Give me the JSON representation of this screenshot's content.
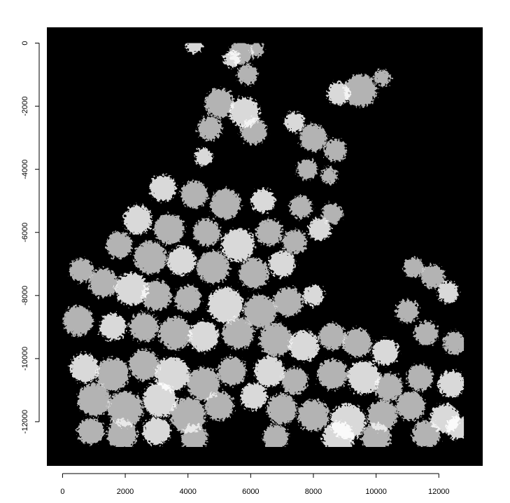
{
  "chart_data": {
    "type": "heatmap",
    "title": "",
    "xlabel": "",
    "ylabel": "",
    "xlim": [
      -500,
      13400
    ],
    "ylim": [
      -13400,
      500
    ],
    "x_ticks": [
      0,
      2000,
      4000,
      6000,
      8000,
      10000,
      12000
    ],
    "x_tick_labels": [
      "0",
      "2000",
      "4000",
      "6000",
      "8000",
      "10000",
      "12000"
    ],
    "y_ticks": [
      0,
      -2000,
      -4000,
      -6000,
      -8000,
      -10000,
      -12000
    ],
    "y_tick_labels": [
      "0",
      "-2000",
      "-4000",
      "-6000",
      "-8000",
      "-10000",
      "-12000"
    ],
    "colors": {
      "background": "#000000",
      "foreground": "#ffffff"
    },
    "grid": false,
    "legend": "none",
    "raster_extent": {
      "x": [
        0,
        12800
      ],
      "y": [
        -12800,
        0
      ]
    },
    "white_regions": [
      [
        4200,
        -60,
        260
      ],
      [
        5700,
        -300,
        380
      ],
      [
        6200,
        -200,
        220
      ],
      [
        5400,
        -500,
        260
      ],
      [
        5900,
        -1000,
        320
      ],
      [
        9500,
        -1500,
        520
      ],
      [
        8800,
        -1600,
        360
      ],
      [
        10200,
        -1100,
        260
      ],
      [
        5000,
        -1900,
        460
      ],
      [
        5800,
        -2200,
        480
      ],
      [
        4700,
        -2700,
        380
      ],
      [
        6100,
        -2800,
        420
      ],
      [
        7400,
        -2500,
        320
      ],
      [
        8000,
        -3000,
        430
      ],
      [
        8700,
        -3400,
        360
      ],
      [
        4500,
        -3600,
        280
      ],
      [
        7800,
        -4000,
        320
      ],
      [
        8500,
        -4200,
        260
      ],
      [
        3200,
        -4600,
        420
      ],
      [
        4200,
        -4800,
        430
      ],
      [
        5200,
        -5100,
        480
      ],
      [
        6400,
        -5000,
        380
      ],
      [
        7600,
        -5200,
        360
      ],
      [
        8600,
        -5400,
        330
      ],
      [
        2400,
        -5600,
        450
      ],
      [
        3400,
        -5900,
        480
      ],
      [
        4600,
        -6000,
        430
      ],
      [
        5600,
        -6400,
        520
      ],
      [
        6600,
        -6000,
        420
      ],
      [
        7400,
        -6300,
        380
      ],
      [
        8200,
        -5900,
        360
      ],
      [
        1800,
        -6400,
        420
      ],
      [
        2800,
        -6800,
        520
      ],
      [
        3800,
        -6900,
        460
      ],
      [
        4800,
        -7100,
        520
      ],
      [
        6100,
        -7300,
        480
      ],
      [
        7000,
        -7000,
        420
      ],
      [
        600,
        -7200,
        380
      ],
      [
        1300,
        -7600,
        460
      ],
      [
        2200,
        -7800,
        520
      ],
      [
        3000,
        -8000,
        480
      ],
      [
        4000,
        -8100,
        420
      ],
      [
        5200,
        -8300,
        560
      ],
      [
        6300,
        -8500,
        520
      ],
      [
        7200,
        -8200,
        460
      ],
      [
        8000,
        -8000,
        330
      ],
      [
        11200,
        -7100,
        320
      ],
      [
        11800,
        -7400,
        380
      ],
      [
        12300,
        -7900,
        340
      ],
      [
        11000,
        -8500,
        360
      ],
      [
        500,
        -8800,
        480
      ],
      [
        1600,
        -9000,
        420
      ],
      [
        2600,
        -9000,
        460
      ],
      [
        3600,
        -9200,
        520
      ],
      [
        4500,
        -9300,
        480
      ],
      [
        5600,
        -9200,
        500
      ],
      [
        6800,
        -9400,
        520
      ],
      [
        7700,
        -9600,
        480
      ],
      [
        8600,
        -9300,
        420
      ],
      [
        9400,
        -9500,
        460
      ],
      [
        10300,
        -9800,
        420
      ],
      [
        11600,
        -9200,
        380
      ],
      [
        12500,
        -9500,
        360
      ],
      [
        700,
        -10300,
        460
      ],
      [
        1600,
        -10500,
        520
      ],
      [
        2600,
        -10200,
        480
      ],
      [
        3500,
        -10500,
        540
      ],
      [
        4500,
        -10800,
        520
      ],
      [
        5400,
        -10400,
        460
      ],
      [
        6600,
        -10400,
        480
      ],
      [
        7400,
        -10700,
        420
      ],
      [
        8600,
        -10500,
        480
      ],
      [
        9600,
        -10600,
        520
      ],
      [
        10400,
        -10900,
        440
      ],
      [
        11400,
        -10600,
        420
      ],
      [
        12400,
        -10800,
        420
      ],
      [
        1000,
        -11300,
        520
      ],
      [
        2000,
        -11600,
        560
      ],
      [
        3100,
        -11300,
        540
      ],
      [
        4000,
        -11800,
        560
      ],
      [
        5000,
        -11500,
        460
      ],
      [
        6100,
        -11200,
        420
      ],
      [
        7000,
        -11600,
        480
      ],
      [
        8000,
        -11800,
        500
      ],
      [
        9100,
        -12000,
        560
      ],
      [
        10200,
        -11800,
        480
      ],
      [
        11100,
        -11500,
        460
      ],
      [
        12200,
        -11900,
        460
      ],
      [
        900,
        -12300,
        420
      ],
      [
        1900,
        -12400,
        480
      ],
      [
        3000,
        -12300,
        440
      ],
      [
        4200,
        -12500,
        420
      ],
      [
        6800,
        -12500,
        400
      ],
      [
        8800,
        -12500,
        500
      ],
      [
        10000,
        -12500,
        460
      ],
      [
        11600,
        -12400,
        440
      ],
      [
        12600,
        -12200,
        360
      ]
    ]
  }
}
